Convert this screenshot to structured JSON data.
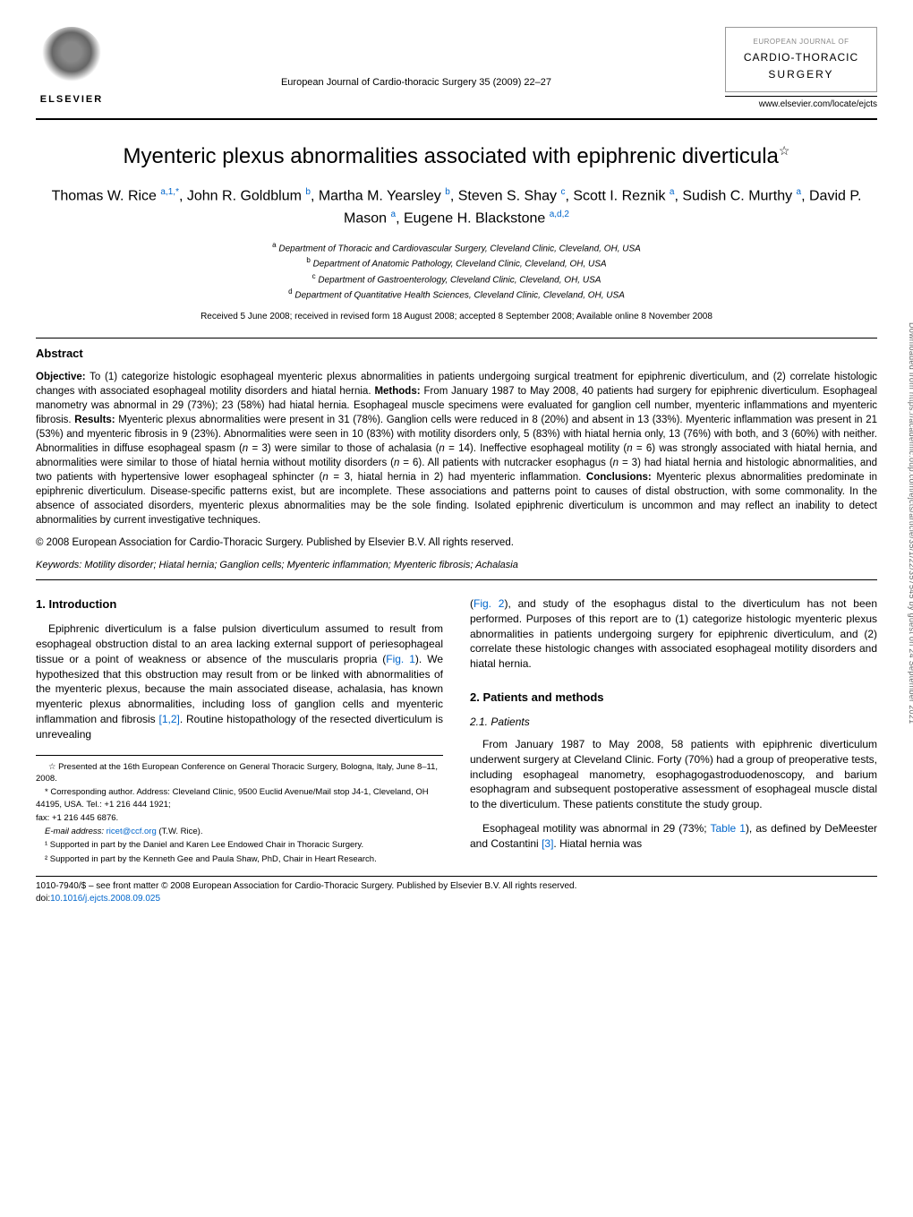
{
  "header": {
    "publisher_name": "ELSEVIER",
    "journal_ref": "European Journal of Cardio-thoracic Surgery 35 (2009) 22–27",
    "right_box_top": "EUROPEAN JOURNAL OF",
    "right_box_main": "CARDIO-THORACIC",
    "right_box_sub": "SURGERY",
    "url": "www.elsevier.com/locate/ejcts"
  },
  "article": {
    "title": "Myenteric plexus abnormalities associated with epiphrenic diverticula",
    "title_star": "☆",
    "authors_html": "Thomas W. Rice <sup>a,1,*</sup>, John R. Goldblum <sup>b</sup>, Martha M. Yearsley <sup>b</sup>, Steven S. Shay <sup>c</sup>, Scott I. Reznik <sup>a</sup>, Sudish C. Murthy <sup>a</sup>, David P. Mason <sup>a</sup>, Eugene H. Blackstone <sup>a,d,2</sup>",
    "affiliations": [
      {
        "sup": "a",
        "text": "Department of Thoracic and Cardiovascular Surgery, Cleveland Clinic, Cleveland, OH, USA"
      },
      {
        "sup": "b",
        "text": "Department of Anatomic Pathology, Cleveland Clinic, Cleveland, OH, USA"
      },
      {
        "sup": "c",
        "text": "Department of Gastroenterology, Cleveland Clinic, Cleveland, OH, USA"
      },
      {
        "sup": "d",
        "text": "Department of Quantitative Health Sciences, Cleveland Clinic, Cleveland, OH, USA"
      }
    ],
    "received": "Received 5 June 2008; received in revised form 18 August 2008; accepted 8 September 2008; Available online 8 November 2008"
  },
  "abstract": {
    "heading": "Abstract",
    "body": "<b>Objective:</b> To (1) categorize histologic esophageal myenteric plexus abnormalities in patients undergoing surgical treatment for epiphrenic diverticulum, and (2) correlate histologic changes with associated esophageal motility disorders and hiatal hernia. <b>Methods:</b> From January 1987 to May 2008, 40 patients had surgery for epiphrenic diverticulum. Esophageal manometry was abnormal in 29 (73%); 23 (58%) had hiatal hernia. Esophageal muscle specimens were evaluated for ganglion cell number, myenteric inflammations and myenteric fibrosis. <b>Results:</b> Myenteric plexus abnormalities were present in 31 (78%). Ganglion cells were reduced in 8 (20%) and absent in 13 (33%). Myenteric inflammation was present in 21 (53%) and myenteric fibrosis in 9 (23%). Abnormalities were seen in 10 (83%) with motility disorders only, 5 (83%) with hiatal hernia only, 13 (76%) with both, and 3 (60%) with neither. Abnormalities in diffuse esophageal spasm (<i>n</i> = 3) were similar to those of achalasia (<i>n</i> = 14). Ineffective esophageal motility (<i>n</i> = 6) was strongly associated with hiatal hernia, and abnormalities were similar to those of hiatal hernia without motility disorders (<i>n</i> = 6). All patients with nutcracker esophagus (<i>n</i> = 3) had hiatal hernia and histologic abnormalities, and two patients with hypertensive lower esophageal sphincter (<i>n</i> = 3, hiatal hernia in 2) had myenteric inflammation. <b>Conclusions:</b> Myenteric plexus abnormalities predominate in epiphrenic diverticulum. Disease-specific patterns exist, but are incomplete. These associations and patterns point to causes of distal obstruction, with some commonality. In the absence of associated disorders, myenteric plexus abnormalities may be the sole finding. Isolated epiphrenic diverticulum is uncommon and may reflect an inability to detect abnormalities by current investigative techniques.",
    "copyright": "© 2008 European Association for Cardio-Thoracic Surgery. Published by Elsevier B.V. All rights reserved.",
    "keywords_label": "Keywords:",
    "keywords": "Motility disorder; Hiatal hernia; Ganglion cells; Myenteric inflammation; Myenteric fibrosis; Achalasia"
  },
  "sections": {
    "intro_heading": "1. Introduction",
    "intro_p1": "Epiphrenic diverticulum is a false pulsion diverticulum assumed to result from esophageal obstruction distal to an area lacking external support of periesophageal tissue or a point of weakness or absence of the muscularis propria (",
    "intro_fig1": "Fig. 1",
    "intro_p1b": "). We hypothesized that this obstruction may result from or be linked with abnormalities of the myenteric plexus, because the main associated disease, achalasia, has known myenteric plexus abnormalities, including loss of ganglion cells and myenteric inflammation and fibrosis ",
    "intro_ref12": "[1,2]",
    "intro_p1c": ". Routine histopathology of the resected diverticulum is unrevealing",
    "intro_p2a": "(",
    "intro_fig2": "Fig. 2",
    "intro_p2b": "), and study of the esophagus distal to the diverticulum has not been performed. Purposes of this report are to (1) categorize histologic myenteric plexus abnormalities in patients undergoing surgery for epiphrenic diverticulum, and (2) correlate these histologic changes with associated esophageal motility disorders and hiatal hernia.",
    "methods_heading": "2. Patients and methods",
    "patients_heading": "2.1. Patients",
    "patients_p1": "From January 1987 to May 2008, 58 patients with epiphrenic diverticulum underwent surgery at Cleveland Clinic. Forty (70%) had a group of preoperative tests, including esophageal manometry, esophagogastroduodenoscopy, and barium esophagram and subsequent postoperative assessment of esophageal muscle distal to the diverticulum. These patients constitute the study group.",
    "patients_p2a": "Esophageal motility was abnormal in 29 (73%; ",
    "patients_table1": "Table 1",
    "patients_p2b": "), as defined by DeMeester and Costantini ",
    "patients_ref3": "[3]",
    "patients_p2c": ". Hiatal hernia was"
  },
  "footnotes": {
    "fn_star": "☆ Presented at the 16th European Conference on General Thoracic Surgery, Bologna, Italy, June 8–11, 2008.",
    "fn_corr": "* Corresponding author. Address: Cleveland Clinic, 9500 Euclid Avenue/Mail stop J4-1, Cleveland, OH 44195, USA. Tel.: +1 216 444 1921;",
    "fn_fax": "fax: +1 216 445 6876.",
    "fn_email_label": "E-mail address:",
    "fn_email": "ricet@ccf.org",
    "fn_email_who": "(T.W. Rice).",
    "fn_1": "¹ Supported in part by the Daniel and Karen Lee Endowed Chair in Thoracic Surgery.",
    "fn_2": "² Supported in part by the Kenneth Gee and Paula Shaw, PhD, Chair in Heart Research."
  },
  "footer": {
    "line1": "1010-7940/$ – see front matter © 2008 European Association for Cardio-Thoracic Surgery. Published by Elsevier B.V. All rights reserved.",
    "doi_label": "doi:",
    "doi": "10.1016/j.ejcts.2008.09.025"
  },
  "side_text": "Downloaded from https://academic.oup.com/ejcts/article/35/1/22/357545 by guest on 24 September 2021",
  "colors": {
    "link": "#0066cc",
    "text": "#000000",
    "side": "#666666"
  }
}
